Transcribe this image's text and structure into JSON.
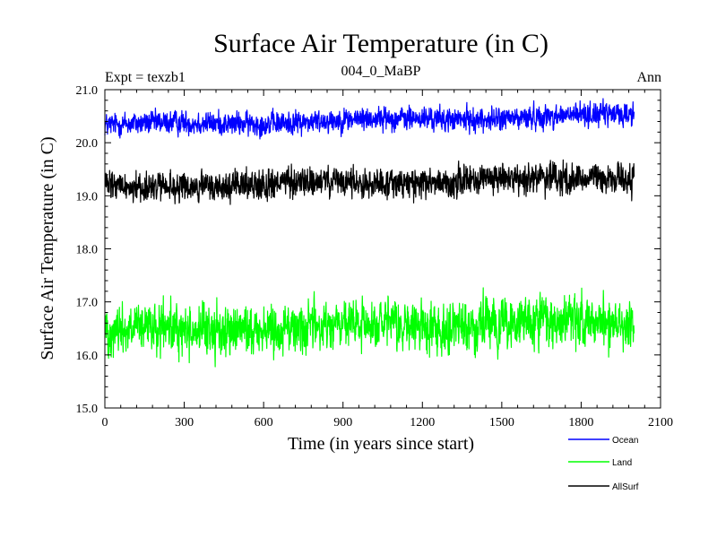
{
  "chart_data": {
    "type": "line",
    "title": "Surface Air Temperature (in C)",
    "subtitle_left": "Expt = texzb1",
    "subtitle_center": "004_0_MaBP",
    "subtitle_right": "Ann",
    "xlabel": "Time (in years since start)",
    "ylabel": "Surface Air Temperature (in C)",
    "xlim": [
      0,
      2100
    ],
    "ylim": [
      15.0,
      21.0
    ],
    "x_ticks": [
      0,
      300,
      600,
      900,
      1200,
      1500,
      1800,
      2100
    ],
    "x_tick_labels": [
      "0",
      "300",
      "600",
      "900",
      "1200",
      "1500",
      "1800",
      "2100"
    ],
    "y_ticks": [
      15.0,
      16.0,
      17.0,
      18.0,
      19.0,
      20.0,
      21.0
    ],
    "y_tick_labels": [
      "15.0",
      "16.0",
      "17.0",
      "18.0",
      "19.0",
      "20.0",
      "21.0"
    ],
    "legend_position": "bottom-right outside",
    "x_range_data": [
      0,
      2000
    ],
    "series": [
      {
        "name": "Ocean",
        "color": "#0000ff",
        "start_mean": 20.33,
        "end_mean": 20.52,
        "amplitude": 0.14,
        "min": 19.9,
        "max": 20.85
      },
      {
        "name": "Land",
        "color": "#00ff00",
        "start_mean": 16.45,
        "end_mean": 16.62,
        "amplitude": 0.3,
        "min": 15.45,
        "max": 17.4
      },
      {
        "name": "AllSurf",
        "color": "#000000",
        "start_mean": 19.15,
        "end_mean": 19.35,
        "amplitude": 0.18,
        "min": 18.65,
        "max": 19.75
      }
    ]
  }
}
